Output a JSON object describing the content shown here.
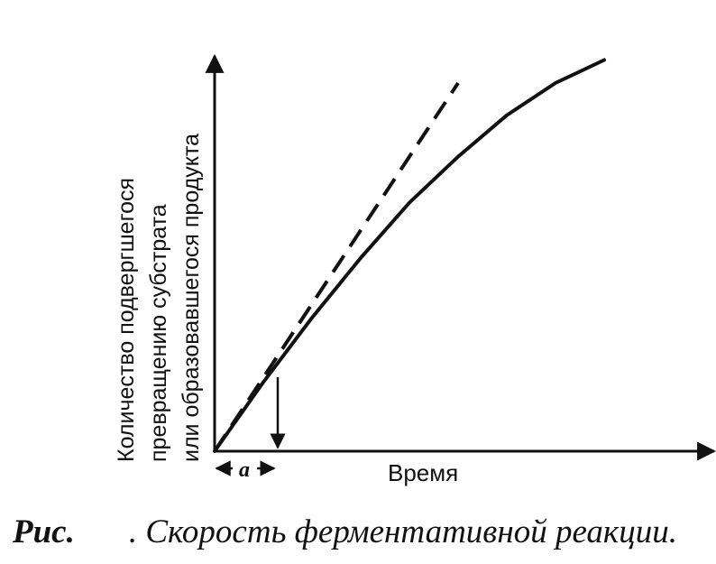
{
  "chart_data": {
    "type": "line",
    "xlabel": "Время",
    "ylabel_lines": [
      "Количество подвергшегося",
      "превращению субстрата",
      "или образовавшегося продукта"
    ],
    "interval_label": "a",
    "series": [
      {
        "style": "solid",
        "x": [
          0,
          0.1,
          0.2,
          0.3,
          0.4,
          0.5,
          0.6,
          0.7,
          0.8
        ],
        "y": [
          0,
          0.15,
          0.29,
          0.42,
          0.54,
          0.64,
          0.73,
          0.8,
          0.85
        ]
      },
      {
        "style": "dashed",
        "x": [
          0,
          0.5
        ],
        "y": [
          0,
          0.8
        ]
      }
    ],
    "grid": false,
    "legend": "none"
  },
  "caption": {
    "prefix": "Рис.",
    "text": ". Скорость ферментативной реакции."
  }
}
